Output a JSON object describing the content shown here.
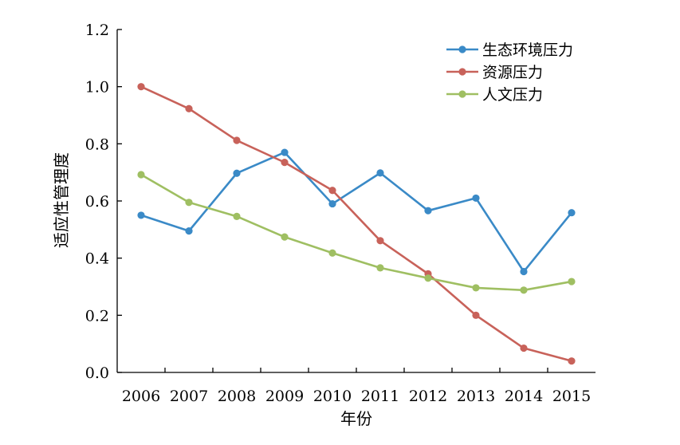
{
  "chart_data": {
    "type": "line",
    "title": "",
    "xlabel": "年份",
    "ylabel": "适应性管理度",
    "categories": [
      "2006",
      "2007",
      "2008",
      "2009",
      "2010",
      "2011",
      "2012",
      "2013",
      "2014",
      "2015"
    ],
    "ylim": [
      0,
      1.2
    ],
    "yticks": [
      "0.0",
      "0.2",
      "0.4",
      "0.6",
      "0.8",
      "1.0",
      "1.2"
    ],
    "grid": false,
    "legend_position": "top-right",
    "series": [
      {
        "name": "生态环境压力",
        "color": "#3a8ac7",
        "values": [
          0.55,
          0.495,
          0.697,
          0.77,
          0.59,
          0.698,
          0.566,
          0.61,
          0.353,
          0.559
        ]
      },
      {
        "name": "资源压力",
        "color": "#c8625a",
        "values": [
          1.0,
          0.923,
          0.812,
          0.735,
          0.637,
          0.461,
          0.345,
          0.2,
          0.085,
          0.04
        ]
      },
      {
        "name": "人文压力",
        "color": "#9fbf62",
        "values": [
          0.692,
          0.595,
          0.546,
          0.474,
          0.418,
          0.366,
          0.33,
          0.296,
          0.288,
          0.318
        ]
      }
    ]
  }
}
